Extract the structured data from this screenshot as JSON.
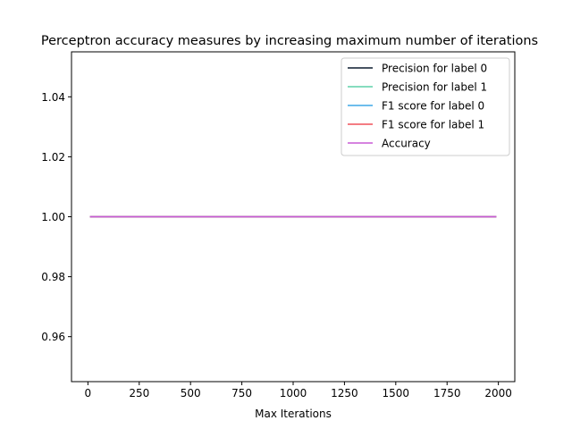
{
  "chart_data": {
    "type": "line",
    "title": "Perceptron accuracy measures by increasing maximum number of iterations",
    "xlabel": "Max Iterations",
    "ylabel": "",
    "xlim": [
      -80,
      2080
    ],
    "ylim": [
      0.945,
      1.055
    ],
    "x_ticks": [
      0,
      250,
      500,
      750,
      1000,
      1250,
      1500,
      1750,
      2000
    ],
    "x_tick_labels": [
      "0",
      "250",
      "500",
      "750",
      "1000",
      "1250",
      "1500",
      "1750",
      "2000"
    ],
    "y_ticks": [
      0.96,
      0.98,
      1.0,
      1.02,
      1.04
    ],
    "y_tick_labels": [
      "0.96",
      "0.98",
      "1.00",
      "1.02",
      "1.04"
    ],
    "grid": false,
    "legend_position": "top-right",
    "x": [
      10,
      1990
    ],
    "series": [
      {
        "name": "Precision for label 0",
        "color": "#0b1a2e",
        "values": [
          1.0,
          1.0
        ]
      },
      {
        "name": "Precision for label 1",
        "color": "#5ed1a8",
        "values": [
          1.0,
          1.0
        ]
      },
      {
        "name": "F1 score for label 0",
        "color": "#3fa9e6",
        "values": [
          1.0,
          1.0
        ]
      },
      {
        "name": "F1 score for label 1",
        "color": "#f0505a",
        "values": [
          1.0,
          1.0
        ]
      },
      {
        "name": "Accuracy",
        "color": "#c85ad6",
        "values": [
          1.0,
          1.0
        ]
      }
    ]
  }
}
